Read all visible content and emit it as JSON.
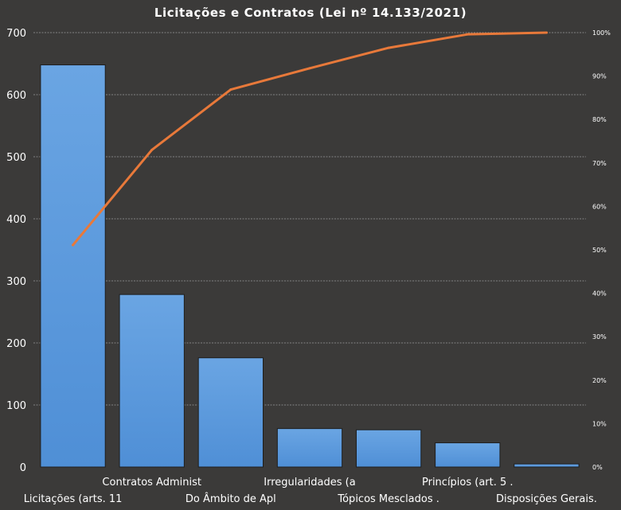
{
  "chart_data": {
    "type": "bar",
    "title": "Licitações e Contratos (Lei nº 14.133/2021)",
    "xlabel": "",
    "ylabel": "",
    "categories": [
      "Licitações (arts. 11",
      "Contratos Administ",
      "Do Âmbito de Apl",
      "Irregularidades (a",
      "Tópicos Mesclados .",
      "Princípios (art. 5 .",
      "Disposições Gerais."
    ],
    "series": [
      {
        "type": "bar",
        "values": [
          648,
          278,
          176,
          62,
          60,
          39,
          5
        ]
      },
      {
        "type": "line",
        "axis": "right",
        "values": [
          51.1,
          73.0,
          86.9,
          91.8,
          96.5,
          99.6,
          100.0
        ]
      }
    ],
    "ylim": [
      0,
      700
    ],
    "yticks": [
      "0",
      "100",
      "200",
      "300",
      "400",
      "500",
      "600",
      "700"
    ],
    "y2lim": [
      0,
      100
    ],
    "y2ticks": [
      "0%",
      "10%",
      "20%",
      "30%",
      "40%",
      "50%",
      "60%",
      "70%",
      "80%",
      "90%",
      "100%"
    ],
    "grid": true,
    "colors": {
      "background": "#3b3a39",
      "bar": "#4f8fd6",
      "bar_top": "#6aa5e3",
      "line": "#e8793a",
      "grid": "#9a9a9a",
      "text": "#ffffff"
    }
  }
}
